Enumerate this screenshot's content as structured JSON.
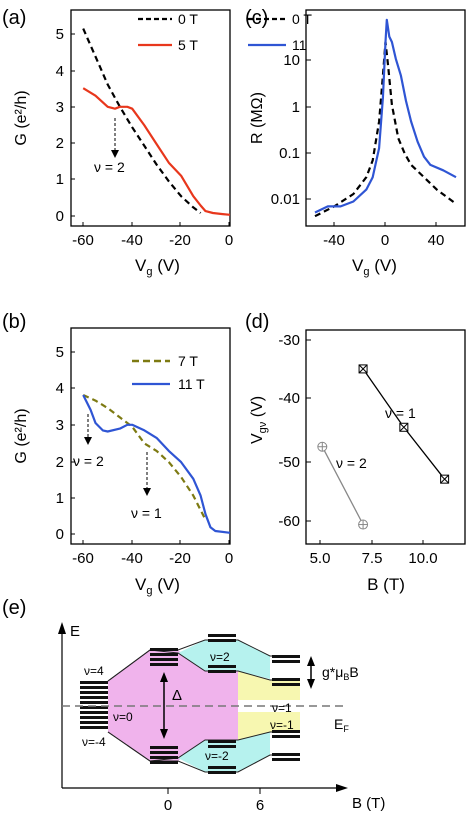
{
  "panels": {
    "a": {
      "label": "(a)",
      "ylabel": "G (e²/h)",
      "xlabel": "V",
      "xlabel_sub": "g",
      "xlabel_unit": " (V)",
      "annotation": "ν = 2",
      "legend": [
        "0 T",
        "5 T"
      ],
      "xticks": [
        "-60",
        "-40",
        "-20",
        "0"
      ],
      "yticks": [
        "0",
        "1",
        "2",
        "3",
        "4",
        "5"
      ]
    },
    "b": {
      "label": "(b)",
      "ylabel": "G (e²/h)",
      "xlabel": "V",
      "xlabel_sub": "g",
      "xlabel_unit": " (V)",
      "annotations": [
        "ν = 2",
        "ν = 1"
      ],
      "legend": [
        "7 T",
        "11 T"
      ],
      "xticks": [
        "-60",
        "-40",
        "-20",
        "0"
      ],
      "yticks": [
        "0",
        "1",
        "2",
        "3",
        "4",
        "5"
      ]
    },
    "c": {
      "label": "(c)",
      "ylabel": "R (MΩ)",
      "xlabel": "V",
      "xlabel_sub": "g",
      "xlabel_unit": " (V)",
      "legend": [
        "0 T",
        "11"
      ],
      "xticks": [
        "-40",
        "0",
        "40"
      ],
      "yticks": [
        "0.01",
        "0.1",
        "1",
        "10"
      ]
    },
    "d": {
      "label": "(d)",
      "ylabel": "V",
      "ylabel_sub": "gν",
      "ylabel_unit": " (V)",
      "xlabel": "B (T)",
      "annotations": [
        "ν = 1",
        "ν = 2"
      ],
      "xticks": [
        "5.0",
        "7.5",
        "10.0"
      ],
      "yticks": [
        "-30",
        "-40",
        "-50",
        "-60"
      ]
    },
    "e": {
      "label": "(e)",
      "yaxis": "E",
      "xaxis": "B (T)",
      "xticks": [
        "0",
        "6"
      ],
      "labels": {
        "nu4": "ν=4",
        "nu_m4": "ν=-4",
        "nu0": "ν=0",
        "delta": "Δ",
        "nu2": "ν=2",
        "nu_m2": "ν=-2",
        "nu1": "ν=1",
        "nu_m1": "ν=-1",
        "zeeman": "g*μ",
        "zeeman_sub": "B",
        "zeeman_tail": "B",
        "ef": "E",
        "ef_sub": "F"
      }
    }
  },
  "colors": {
    "black": "#000000",
    "red": "#e8371c",
    "blue": "#2f55d4",
    "olive": "#7d7a12",
    "gray": "#888888",
    "pink": "#f0b3ec",
    "cyan": "#b6f2ee",
    "yellow": "#f7f7b0"
  },
  "chart_data": [
    {
      "panel": "a",
      "type": "line",
      "xlim": [
        -65,
        0
      ],
      "ylim": [
        -0.3,
        5.5
      ],
      "series": [
        {
          "name": "0 T",
          "style": "dashed",
          "color": "#000000",
          "x": [
            -60,
            -55,
            -50,
            -45,
            -40,
            -35,
            -30,
            -25,
            -20,
            -15,
            -12
          ],
          "y": [
            5.0,
            4.25,
            3.5,
            2.9,
            2.35,
            1.85,
            1.35,
            0.9,
            0.5,
            0.2,
            0.05
          ]
        },
        {
          "name": "5 T",
          "style": "solid",
          "color": "#e8371c",
          "x": [
            -60,
            -55,
            -50,
            -47,
            -45,
            -42,
            -40,
            -35,
            -30,
            -25,
            -20,
            -15,
            -12,
            -10,
            -7,
            -3,
            0
          ],
          "y": [
            3.4,
            3.2,
            2.9,
            2.85,
            2.9,
            2.9,
            2.85,
            2.4,
            1.9,
            1.4,
            1.05,
            0.5,
            0.25,
            0.1,
            0.05,
            0.02,
            0.0
          ]
        }
      ]
    },
    {
      "panel": "b",
      "type": "line",
      "xlim": [
        -65,
        0
      ],
      "ylim": [
        -0.3,
        5.5
      ],
      "series": [
        {
          "name": "7 T",
          "style": "dashed",
          "color": "#7d7a12",
          "x": [
            -60,
            -55,
            -50,
            -45,
            -40,
            -35,
            -30,
            -25,
            -20,
            -15,
            -10
          ],
          "y": [
            3.7,
            3.55,
            3.35,
            3.1,
            2.85,
            2.4,
            2.2,
            1.9,
            1.5,
            1.0,
            0.35
          ]
        },
        {
          "name": "11 T",
          "style": "solid",
          "color": "#2f55d4",
          "x": [
            -60,
            -57,
            -55,
            -52,
            -50,
            -45,
            -42,
            -40,
            -35,
            -30,
            -25,
            -20,
            -15,
            -12,
            -10,
            -8,
            -6,
            0
          ],
          "y": [
            3.7,
            3.3,
            2.95,
            2.75,
            2.72,
            2.8,
            2.9,
            2.9,
            2.75,
            2.55,
            2.2,
            1.9,
            1.45,
            1.0,
            0.5,
            0.15,
            0.05,
            0.0
          ]
        }
      ]
    },
    {
      "panel": "c",
      "type": "line",
      "yscale": "log",
      "xlim": [
        -62,
        62
      ],
      "ylim": [
        0.004,
        30
      ],
      "series": [
        {
          "name": "0 T",
          "style": "dashed",
          "color": "#000000",
          "x": [
            -55,
            -40,
            -25,
            -15,
            -10,
            -5,
            -2,
            0,
            2,
            5,
            10,
            15,
            20,
            30,
            40,
            55
          ],
          "y": [
            0.006,
            0.009,
            0.015,
            0.03,
            0.06,
            0.3,
            2.0,
            8.0,
            3.0,
            0.6,
            0.15,
            0.08,
            0.05,
            0.03,
            0.018,
            0.01
          ]
        },
        {
          "name": "11",
          "style": "solid",
          "color": "#2f55d4",
          "x": [
            -55,
            -45,
            -35,
            -25,
            -15,
            -10,
            -5,
            -2,
            0,
            1,
            3,
            5,
            8,
            12,
            16,
            20,
            25,
            30,
            35,
            45,
            55
          ],
          "y": [
            0.007,
            0.009,
            0.009,
            0.011,
            0.018,
            0.03,
            0.1,
            0.8,
            8.0,
            20.0,
            10.0,
            8.0,
            4.0,
            2.0,
            0.7,
            0.3,
            0.13,
            0.07,
            0.05,
            0.04,
            0.03
          ]
        }
      ]
    },
    {
      "panel": "d",
      "type": "scatter",
      "xlim": [
        4.2,
        12.0
      ],
      "ylim": [
        -63,
        -30
      ],
      "series": [
        {
          "name": "ν = 1",
          "color": "#000000",
          "marker": "square-x",
          "x": [
            7,
            9,
            11
          ],
          "y": [
            -36,
            -45,
            -53
          ]
        },
        {
          "name": "ν = 2",
          "color": "#888888",
          "marker": "circle-plus",
          "x": [
            5,
            7
          ],
          "y": [
            -48,
            -60
          ]
        }
      ]
    }
  ]
}
